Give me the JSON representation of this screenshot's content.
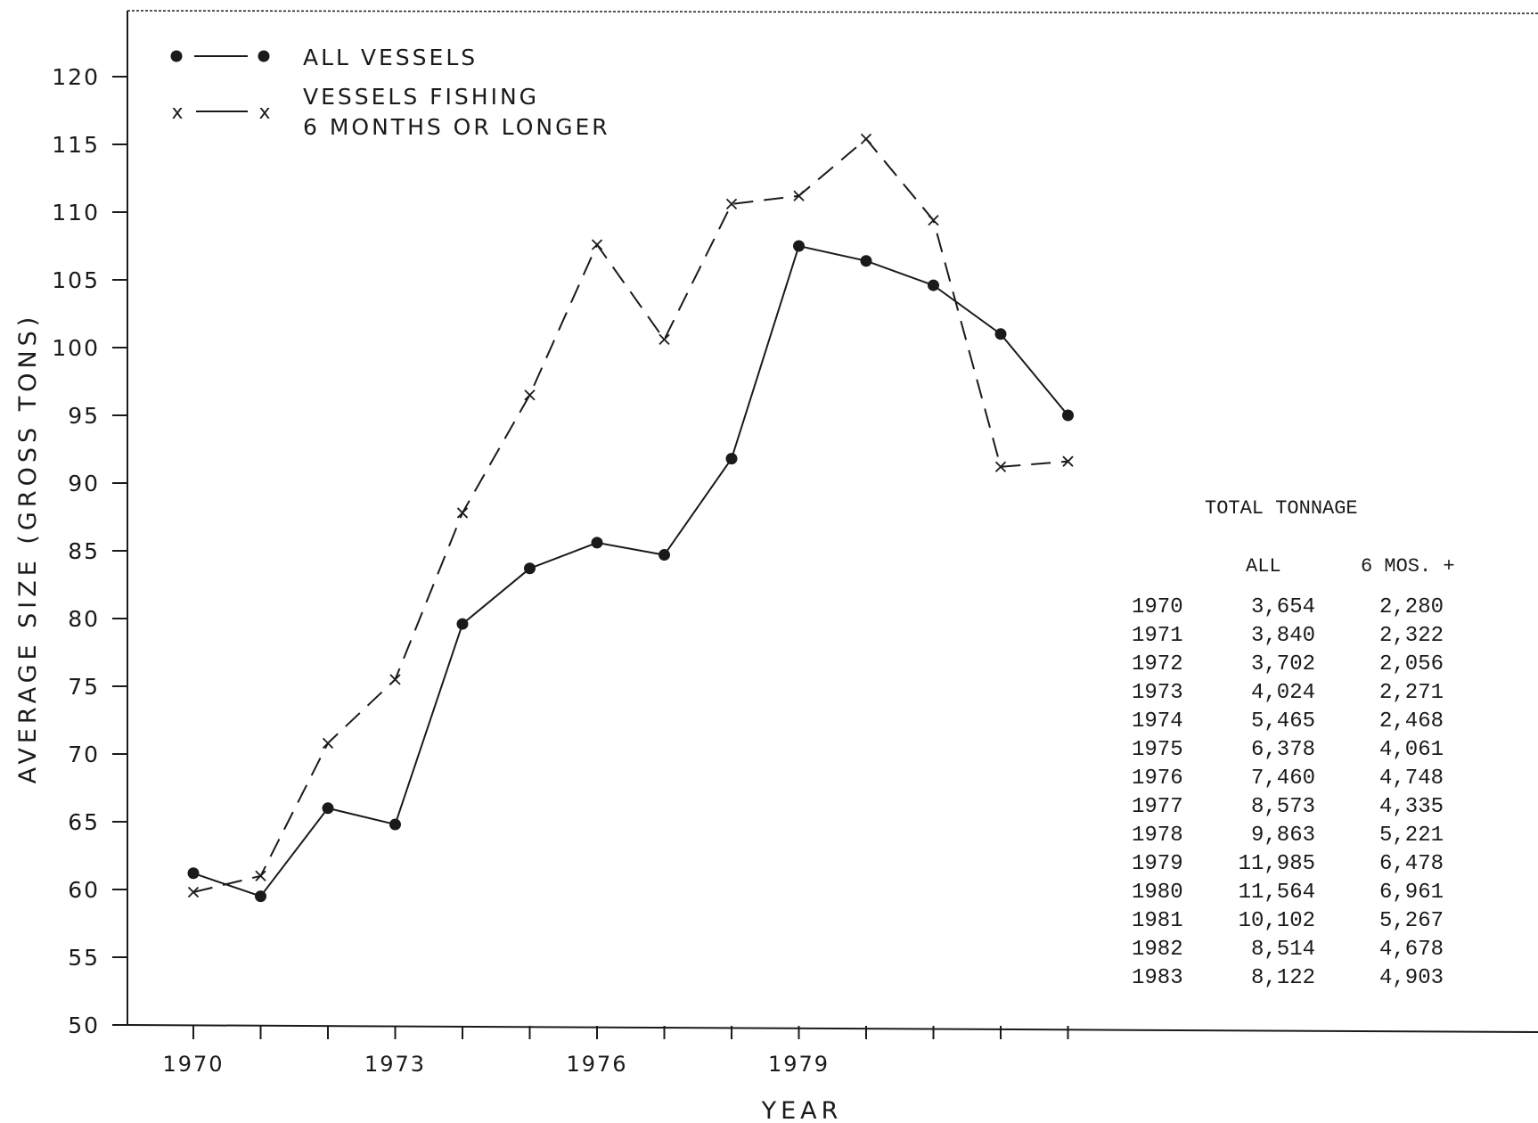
{
  "chart_data": {
    "type": "line",
    "xlabel": "YEAR",
    "ylabel": "AVERAGE SIZE (GROSS TONS)",
    "ylim": [
      50,
      120
    ],
    "yticks": [
      "50",
      "55",
      "60",
      "65",
      "70",
      "75",
      "80",
      "85",
      "90",
      "95",
      "100",
      "105",
      "110",
      "115",
      "120"
    ],
    "xtick_labels": [
      "1970",
      "1973",
      "1976",
      "1979"
    ],
    "x": [
      1970,
      1971,
      1972,
      1973,
      1974,
      1975,
      1976,
      1977,
      1978,
      1979,
      1980,
      1981,
      1982,
      1983
    ],
    "series": [
      {
        "name": "ALL VESSELS",
        "marker": "dot",
        "line": "solid",
        "values": [
          61.2,
          59.5,
          66.0,
          64.8,
          79.6,
          83.7,
          85.6,
          84.7,
          91.8,
          107.5,
          106.4,
          104.6,
          101.0,
          95.0
        ]
      },
      {
        "name": "VESSELS FISHING 6 MONTHS OR LONGER",
        "marker": "x",
        "line": "dashed",
        "values": [
          59.8,
          61.0,
          70.8,
          75.5,
          87.8,
          96.5,
          107.6,
          100.6,
          110.6,
          111.2,
          115.4,
          109.4,
          91.2,
          91.6
        ]
      }
    ],
    "legend": {
      "position": "top-left",
      "items": [
        {
          "label_lines": [
            "ALL VESSELS"
          ]
        },
        {
          "label_lines": [
            "VESSELS FISHING",
            "6 MONTHS OR LONGER"
          ]
        }
      ]
    },
    "table": {
      "title": "TOTAL TONNAGE",
      "columns": [
        "ALL",
        "6 MOS. +"
      ],
      "rows": [
        [
          "1970",
          "3,654",
          "2,280"
        ],
        [
          "1971",
          "3,840",
          "2,322"
        ],
        [
          "1972",
          "3,702",
          "2,056"
        ],
        [
          "1973",
          "4,024",
          "2,271"
        ],
        [
          "1974",
          "5,465",
          "2,468"
        ],
        [
          "1975",
          "6,378",
          "4,061"
        ],
        [
          "1976",
          "7,460",
          "4,748"
        ],
        [
          "1977",
          "8,573",
          "4,335"
        ],
        [
          "1978",
          "9,863",
          "5,221"
        ],
        [
          "1979",
          "11,985",
          "6,478"
        ],
        [
          "1980",
          "11,564",
          "6,961"
        ],
        [
          "1981",
          "10,102",
          "5,267"
        ],
        [
          "1982",
          "8,514",
          "4,678"
        ],
        [
          "1983",
          "8,122",
          "4,903"
        ]
      ]
    },
    "colors": {
      "ink": "#1a1a1a",
      "background": "#ffffff"
    }
  }
}
